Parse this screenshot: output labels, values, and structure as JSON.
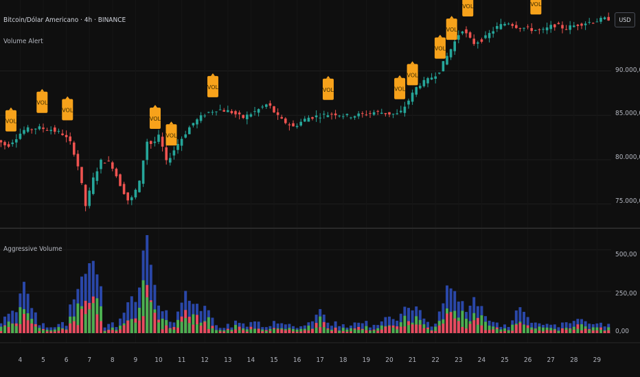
{
  "header": {
    "symbol_line": "Bitcoin/Dólar Americano · 4h · BINANCE",
    "indicator_top": "Volume Alert",
    "indicator_bottom": "Aggressive Volume",
    "currency_button": "USD"
  },
  "colors": {
    "up": "#26a69a",
    "down": "#ef5350",
    "badge": "#f7a21b",
    "vol_total": "#2a47a8",
    "vol_buy": "#4caf50",
    "vol_sell": "#e84a5f",
    "grid": "#1e1e1e"
  },
  "chart_data": [
    {
      "type": "candlestick",
      "title": "Bitcoin/Dólar Americano · 4h · BINANCE",
      "x_categories": [
        "4",
        "5",
        "6",
        "7",
        "8",
        "9",
        "10",
        "11",
        "12",
        "13",
        "14",
        "15",
        "16",
        "17",
        "18",
        "19",
        "20",
        "21",
        "22",
        "23",
        "24",
        "25",
        "26",
        "27",
        "28",
        "29"
      ],
      "y_ticks": [
        "90.000,00",
        "85.000,00",
        "80.000,00",
        "75.000,00"
      ],
      "y_tick_values": [
        90000,
        85000,
        80000,
        75000
      ],
      "ylim": [
        72500,
        98000
      ],
      "annotation_label": "VOL",
      "alert_markers_day": [
        3.6,
        4.95,
        6.05,
        9.85,
        10.55,
        12.35,
        17.35,
        20.45,
        21.0,
        22.2,
        22.7,
        23.4,
        26.35
      ],
      "price_path": [
        [
          3.0,
          82500
        ],
        [
          3.6,
          81500
        ],
        [
          4.3,
          83300
        ],
        [
          4.9,
          83600
        ],
        [
          5.5,
          83400
        ],
        [
          6.0,
          82900
        ],
        [
          6.4,
          81700
        ],
        [
          6.7,
          79000
        ],
        [
          7.0,
          74800
        ],
        [
          7.35,
          78000
        ],
        [
          7.7,
          80000
        ],
        [
          8.1,
          79600
        ],
        [
          8.5,
          77200
        ],
        [
          8.9,
          75100
        ],
        [
          9.4,
          77800
        ],
        [
          9.6,
          82200
        ],
        [
          9.9,
          81700
        ],
        [
          10.2,
          82700
        ],
        [
          10.5,
          79700
        ],
        [
          11.0,
          81800
        ],
        [
          11.6,
          84000
        ],
        [
          12.2,
          85200
        ],
        [
          12.7,
          85700
        ],
        [
          13.3,
          85400
        ],
        [
          13.8,
          84700
        ],
        [
          14.4,
          85500
        ],
        [
          14.9,
          86300
        ],
        [
          15.4,
          84600
        ],
        [
          16.0,
          83700
        ],
        [
          16.6,
          84700
        ],
        [
          17.2,
          85000
        ],
        [
          17.8,
          85200
        ],
        [
          18.4,
          84900
        ],
        [
          19.0,
          85100
        ],
        [
          19.6,
          85400
        ],
        [
          20.1,
          85200
        ],
        [
          20.6,
          85100
        ],
        [
          21.0,
          86700
        ],
        [
          21.4,
          88400
        ],
        [
          21.8,
          88900
        ],
        [
          22.3,
          89900
        ],
        [
          22.8,
          92300
        ],
        [
          23.3,
          94800
        ],
        [
          23.8,
          93100
        ],
        [
          24.3,
          93700
        ],
        [
          24.8,
          94900
        ],
        [
          25.3,
          95500
        ],
        [
          25.7,
          95000
        ],
        [
          26.3,
          94700
        ],
        [
          26.8,
          94500
        ],
        [
          27.3,
          95200
        ],
        [
          27.8,
          94800
        ],
        [
          28.4,
          95300
        ],
        [
          29.0,
          95600
        ],
        [
          29.6,
          95900
        ]
      ]
    },
    {
      "type": "bar",
      "title": "Aggressive Volume",
      "series": [
        "total",
        "buy",
        "sell"
      ],
      "y_ticks": [
        "500,00",
        "250,00",
        "0,00"
      ],
      "y_tick_values": [
        500,
        250,
        0
      ],
      "ylim": [
        0,
        600
      ],
      "spikes": [
        [
          3.6,
          170
        ],
        [
          4.2,
          300
        ],
        [
          6.6,
          380
        ],
        [
          6.9,
          460
        ],
        [
          7.1,
          540
        ],
        [
          8.8,
          230
        ],
        [
          9.2,
          280
        ],
        [
          9.5,
          610
        ],
        [
          10.1,
          180
        ],
        [
          11.2,
          250
        ],
        [
          11.6,
          200
        ],
        [
          12.0,
          160
        ],
        [
          17.0,
          140
        ],
        [
          20.0,
          130
        ],
        [
          20.8,
          180
        ],
        [
          21.2,
          170
        ],
        [
          22.6,
          340
        ],
        [
          23.1,
          200
        ],
        [
          23.7,
          250
        ],
        [
          25.7,
          180
        ],
        [
          28.2,
          100
        ]
      ]
    }
  ]
}
